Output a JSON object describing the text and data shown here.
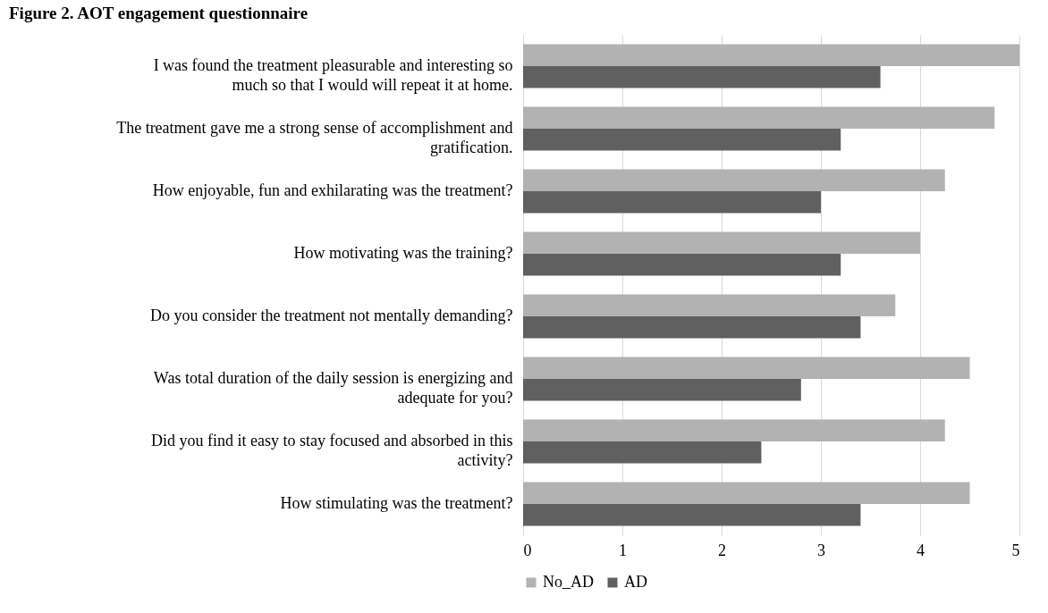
{
  "chart_data": {
    "type": "bar",
    "orientation": "horizontal",
    "title": "Figure 2. AOT engagement questionnaire",
    "categories": [
      "I was found the treatment pleasurable and interesting so much so that I would will repeat it at home.",
      "The treatment gave me a strong sense of accomplishment and gratification.",
      "How enjoyable, fun and exhilarating was the treatment?",
      "How motivating was the training?",
      "Do you consider the treatment not mentally demanding?",
      "Was total duration of the daily session is energizing and adequate for you?",
      "Did you find it easy to stay focused and absorbed in this activity?",
      "How stimulating was the treatment?"
    ],
    "series": [
      {
        "name": "No_AD",
        "color": "#b2b2b2",
        "values": [
          5,
          4.75,
          4.25,
          4,
          3.75,
          4.5,
          4.25,
          4.5
        ]
      },
      {
        "name": "AD",
        "color": "#606060",
        "values": [
          3.6,
          3.2,
          3.0,
          3.2,
          3.4,
          2.8,
          2.4,
          3.4
        ]
      }
    ],
    "xlim": [
      0,
      5
    ],
    "xticks": [
      0,
      1,
      2,
      3,
      4,
      5
    ],
    "grid": "x",
    "legend": "bottom"
  }
}
